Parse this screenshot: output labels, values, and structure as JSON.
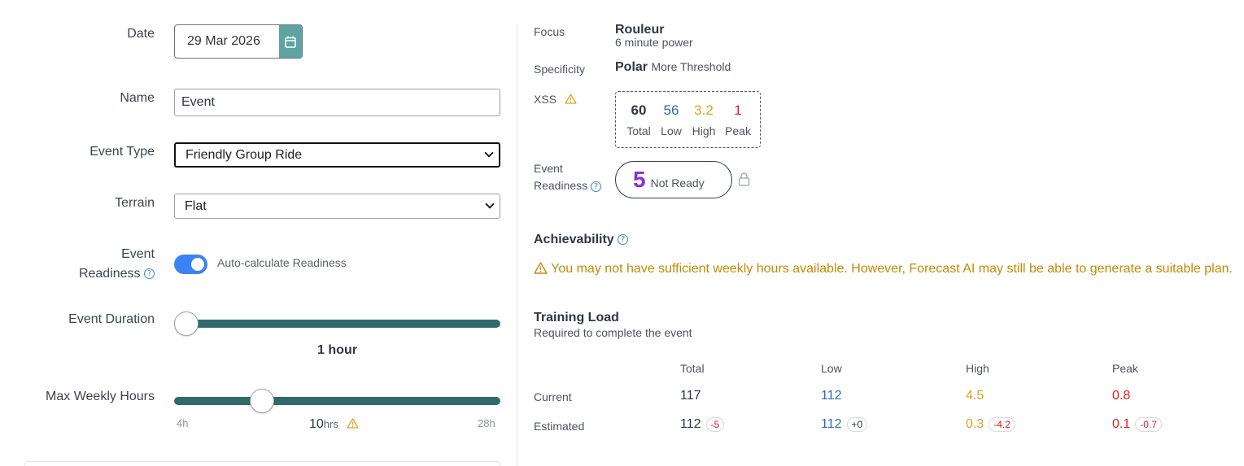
{
  "form": {
    "date": {
      "label": "Date",
      "value": "29 Mar 2026"
    },
    "name": {
      "label": "Name",
      "value": "Event"
    },
    "event_type": {
      "label": "Event Type",
      "value": "Friendly Group Ride"
    },
    "terrain": {
      "label": "Terrain",
      "value": "Flat"
    },
    "readiness": {
      "label_line1": "Event",
      "label_line2": "Readiness",
      "toggle_label": "Auto-calculate Readiness",
      "toggle_on": true
    },
    "duration": {
      "label": "Event Duration",
      "value_text": "1 hour",
      "fraction": 0.0
    },
    "weekly_hours": {
      "label": "Max Weekly Hours",
      "min": "4h",
      "max": "28h",
      "value": "10",
      "unit": "hrs",
      "value_hours": 10,
      "range_hours": [
        4,
        28
      ]
    }
  },
  "summary": {
    "focus": {
      "label": "Focus",
      "value": "Rouleur",
      "sub": "6 minute power"
    },
    "specificity": {
      "label": "Specificity",
      "value": "Polar",
      "sub": "More Threshold"
    },
    "xss": {
      "label": "XSS",
      "total": {
        "value": "60",
        "caption": "Total"
      },
      "low": {
        "value": "56",
        "caption": "Low"
      },
      "high": {
        "value": "3.2",
        "caption": "High"
      },
      "peak": {
        "value": "1",
        "caption": "Peak"
      }
    },
    "readiness": {
      "label_line1": "Event",
      "label_line2": "Readiness",
      "score": "5",
      "status": "Not Ready"
    },
    "achievability": {
      "title": "Achievability",
      "message": "You may not have sufficient weekly hours available. However, Forecast AI may still be able to generate a suitable plan."
    },
    "training_load": {
      "title": "Training Load",
      "subtitle": "Required to complete the event",
      "headers": [
        "Total",
        "Low",
        "High",
        "Peak"
      ],
      "rows": [
        {
          "label": "Current",
          "values": [
            "117",
            "112",
            "4.5",
            "0.8"
          ],
          "deltas": [
            "",
            "",
            "",
            ""
          ]
        },
        {
          "label": "Estimated",
          "values": [
            "112",
            "112",
            "0.3",
            "0.1"
          ],
          "deltas": [
            "-5",
            "+0",
            "-4.2",
            "-0.7"
          ]
        }
      ]
    }
  },
  "colors": {
    "accent": "#3b82f6",
    "teal": "#2f6b6a",
    "warning": "#c48a06",
    "low": "#2b6cb0",
    "high": "#e0a020",
    "peak": "#e02020",
    "readiness": "#8b2fd6"
  }
}
